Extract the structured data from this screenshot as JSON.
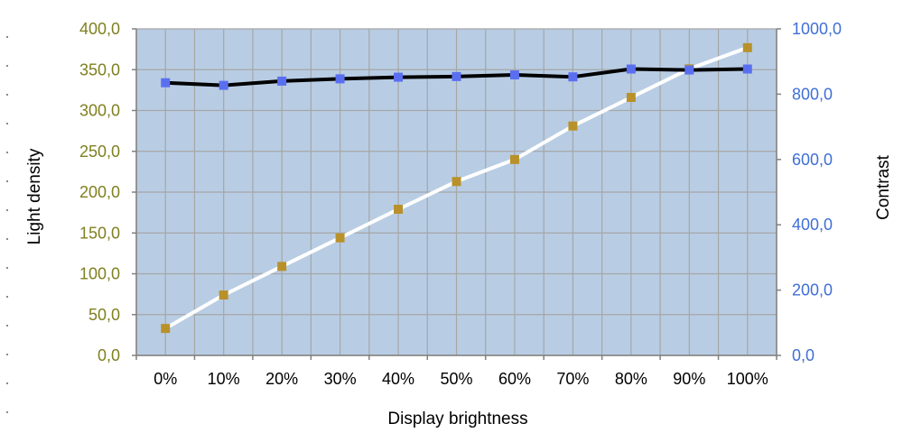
{
  "chart_data": {
    "type": "line",
    "title": "",
    "xlabel": "Display brightness",
    "ylabel_left": "Light density",
    "ylabel_right": "Contrast",
    "categories": [
      "0%",
      "10%",
      "20%",
      "30%",
      "40%",
      "50%",
      "60%",
      "70%",
      "80%",
      "90%",
      "100%"
    ],
    "ylim_left": [
      0,
      400
    ],
    "ylim_right": [
      0,
      1000
    ],
    "left_ticks": [
      "0,0",
      "50,0",
      "100,0",
      "150,0",
      "200,0",
      "250,0",
      "300,0",
      "350,0",
      "400,0"
    ],
    "right_ticks": [
      "0,0",
      "200,0",
      "400,0",
      "600,0",
      "800,0",
      "1000,0"
    ],
    "grid": true,
    "legend": "none",
    "series": [
      {
        "axis": "left",
        "line_color": "#ffffff",
        "marker_color": "#b8912a",
        "values": [
          33,
          74,
          109,
          144,
          179,
          213,
          240,
          281,
          316,
          351,
          377
        ]
      },
      {
        "axis": "right",
        "line_color": "#000000",
        "marker_color": "#5a6ff0",
        "values": [
          835,
          827,
          840,
          847,
          852,
          854,
          859,
          853,
          877,
          874,
          877
        ]
      }
    ],
    "colors": {
      "plot_background": "#b8cde4",
      "grid": "#a6a6a6",
      "left_axis_text": "#7f7f1f",
      "right_axis_text": "#3f6fd6"
    }
  }
}
